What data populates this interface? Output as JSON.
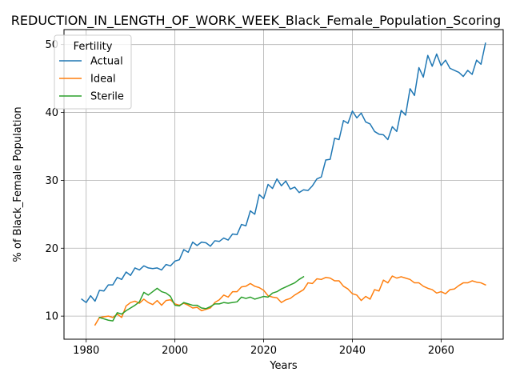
{
  "chart_data": {
    "type": "line",
    "title": "REDUCTION_IN_LENGTH_OF_WORK_WEEK_Black_Female_Population_Scoring",
    "xlabel": "Years",
    "ylabel": "% of Black_Female Population",
    "xlim": [
      1975,
      2074
    ],
    "ylim": [
      6.6,
      52.2
    ],
    "xticks": [
      1980,
      2000,
      2020,
      2040,
      2060
    ],
    "yticks": [
      10,
      20,
      30,
      40,
      50
    ],
    "grid": true,
    "legend": {
      "title": "Fertility",
      "placement": "upper left"
    },
    "series": [
      {
        "name": "Actual",
        "color": "#1f77b4",
        "x": [
          1979,
          1980,
          1981,
          1982,
          1983,
          1984,
          1985,
          1986,
          1987,
          1988,
          1989,
          1990,
          1991,
          1992,
          1993,
          1994,
          1995,
          1996,
          1997,
          1998,
          1999,
          2000,
          2001,
          2002,
          2003,
          2004,
          2005,
          2006,
          2007,
          2008,
          2009,
          2010,
          2011,
          2012,
          2013,
          2014,
          2015,
          2016,
          2017,
          2018,
          2019,
          2020,
          2021,
          2022,
          2023,
          2024,
          2025,
          2026,
          2027,
          2028,
          2029,
          2030,
          2031,
          2032,
          2033,
          2034,
          2035,
          2036,
          2037,
          2038,
          2039,
          2040,
          2041,
          2042,
          2043,
          2044,
          2045,
          2046,
          2047,
          2048,
          2049,
          2050,
          2051,
          2052,
          2053,
          2054,
          2055,
          2056,
          2057,
          2058,
          2059,
          2060,
          2061,
          2062,
          2063,
          2064,
          2065,
          2066,
          2067,
          2068,
          2069,
          2070
        ],
        "values": [
          12.5,
          12.0,
          13.0,
          12.2,
          13.8,
          13.7,
          14.6,
          14.6,
          15.7,
          15.4,
          16.5,
          16.0,
          17.1,
          16.8,
          17.4,
          17.1,
          17.0,
          17.1,
          16.8,
          17.6,
          17.4,
          18.1,
          18.3,
          19.8,
          19.4,
          20.9,
          20.4,
          20.9,
          20.8,
          20.3,
          21.1,
          21.0,
          21.5,
          21.2,
          22.1,
          22.0,
          23.5,
          23.3,
          25.5,
          25.0,
          27.9,
          27.3,
          29.4,
          28.8,
          30.2,
          29.2,
          29.9,
          28.7,
          29.0,
          28.2,
          28.6,
          28.5,
          29.2,
          30.2,
          30.5,
          33.0,
          33.1,
          36.2,
          36.0,
          38.8,
          38.4,
          40.2,
          39.2,
          39.9,
          38.6,
          38.3,
          37.2,
          36.8,
          36.7,
          36.0,
          37.9,
          37.2,
          40.3,
          39.6,
          43.5,
          42.5,
          46.6,
          45.2,
          48.4,
          46.8,
          48.6,
          46.9,
          47.7,
          46.5,
          46.2,
          45.9,
          45.3,
          46.2,
          45.6,
          47.7,
          47.1,
          50.2
        ]
      },
      {
        "name": "Ideal",
        "color": "#ff7f0e",
        "x": [
          1982,
          1983,
          1984,
          1985,
          1986,
          1987,
          1988,
          1989,
          1990,
          1991,
          1992,
          1993,
          1994,
          1995,
          1996,
          1997,
          1998,
          1999,
          2000,
          2001,
          2002,
          2003,
          2004,
          2005,
          2006,
          2007,
          2008,
          2009,
          2010,
          2011,
          2012,
          2013,
          2014,
          2015,
          2016,
          2017,
          2018,
          2019,
          2020,
          2021,
          2022,
          2023,
          2024,
          2025,
          2026,
          2027,
          2028,
          2029,
          2030,
          2031,
          2032,
          2033,
          2034,
          2035,
          2036,
          2037,
          2038,
          2039,
          2040,
          2041,
          2042,
          2043,
          2044,
          2045,
          2046,
          2047,
          2048,
          2049,
          2050,
          2051,
          2052,
          2053,
          2054,
          2055,
          2056,
          2057,
          2058,
          2059,
          2060,
          2061,
          2062,
          2063,
          2064,
          2065,
          2066,
          2067,
          2068,
          2069,
          2070
        ],
        "values": [
          8.7,
          9.8,
          9.9,
          10.0,
          9.8,
          10.3,
          9.8,
          11.5,
          12.0,
          12.2,
          11.9,
          12.5,
          12.0,
          11.7,
          12.3,
          11.6,
          12.3,
          12.4,
          11.8,
          11.6,
          11.9,
          11.6,
          11.2,
          11.3,
          10.8,
          11.0,
          11.2,
          12.0,
          12.4,
          13.1,
          12.8,
          13.6,
          13.6,
          14.3,
          14.4,
          14.8,
          14.4,
          14.2,
          13.8,
          13.0,
          12.8,
          12.7,
          12.0,
          12.4,
          12.6,
          13.1,
          13.5,
          13.9,
          14.9,
          14.8,
          15.5,
          15.4,
          15.7,
          15.6,
          15.2,
          15.2,
          14.4,
          14.0,
          13.3,
          13.1,
          12.3,
          12.9,
          12.5,
          13.9,
          13.7,
          15.3,
          14.9,
          15.9,
          15.6,
          15.8,
          15.6,
          15.4,
          14.9,
          14.9,
          14.4,
          14.1,
          13.9,
          13.4,
          13.6,
          13.3,
          13.9,
          14.0,
          14.5,
          14.9,
          14.9,
          15.2,
          15.0,
          14.9,
          14.6
        ]
      },
      {
        "name": "Sterile",
        "color": "#2ca02c",
        "x": [
          1983,
          1984,
          1985,
          1986,
          1987,
          1988,
          1989,
          1990,
          1991,
          1992,
          1993,
          1994,
          1995,
          1996,
          1997,
          1998,
          1999,
          2000,
          2001,
          2002,
          2003,
          2004,
          2005,
          2006,
          2007,
          2008,
          2009,
          2010,
          2011,
          2012,
          2013,
          2014,
          2015,
          2016,
          2017,
          2018,
          2019,
          2020,
          2021,
          2022,
          2023,
          2024,
          2025,
          2026,
          2027,
          2028,
          2029
        ],
        "values": [
          9.8,
          9.6,
          9.4,
          9.3,
          10.5,
          10.3,
          10.8,
          11.2,
          11.6,
          12.1,
          13.5,
          13.1,
          13.6,
          14.1,
          13.6,
          13.4,
          12.9,
          11.6,
          11.5,
          12.0,
          11.8,
          11.6,
          11.6,
          11.2,
          11.1,
          11.4,
          11.8,
          11.8,
          12.0,
          11.9,
          12.0,
          12.1,
          12.8,
          12.6,
          12.8,
          12.5,
          12.7,
          12.9,
          12.8,
          13.4,
          13.6,
          14.0,
          14.3,
          14.6,
          14.9,
          15.4,
          15.8
        ]
      }
    ]
  }
}
